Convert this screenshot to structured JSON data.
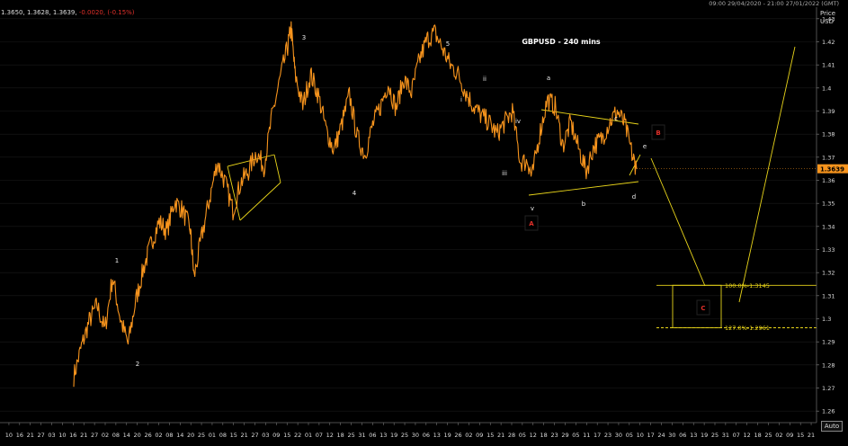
{
  "header": {
    "ohlc_values": "1.3650, 1.3628, 1.3639,",
    "change": "-0.0020, (-0.15%)",
    "date_range": "09:00 29/04/2020 - 21:00 27/01/2022 (GMT)",
    "price_label": "Price",
    "currency_label": "USD",
    "auto_button": "Auto"
  },
  "chart_data": {
    "type": "line",
    "title": "GBPUSD - 240 mins",
    "xlabel": "",
    "ylabel": "Price USD",
    "ylim": [
      1.255,
      1.435
    ],
    "y_ticks": [
      "1.43",
      "1.42",
      "1.41",
      "1.4",
      "1.39",
      "1.38",
      "1.37",
      "1.36",
      "1.35",
      "1.34",
      "1.33",
      "1.32",
      "1.31",
      "1.3",
      "1.29",
      "1.28",
      "1.27",
      "1.26"
    ],
    "y_tick_values": [
      1.43,
      1.42,
      1.41,
      1.4,
      1.39,
      1.38,
      1.37,
      1.36,
      1.35,
      1.34,
      1.33,
      1.32,
      1.31,
      1.3,
      1.29,
      1.28,
      1.27,
      1.26
    ],
    "x_tick_labels": [
      "10",
      "16",
      "21",
      "27",
      "03",
      "10",
      "16",
      "21",
      "27",
      "02",
      "08",
      "14",
      "20",
      "26",
      "02",
      "08",
      "14",
      "20",
      "25",
      "01",
      "08",
      "15",
      "21",
      "27",
      "03",
      "09",
      "15",
      "22",
      "01",
      "07",
      "12",
      "18",
      "25",
      "31",
      "06",
      "13",
      "19",
      "25",
      "30",
      "06",
      "13",
      "19",
      "26",
      "02",
      "09",
      "15",
      "21",
      "28",
      "05",
      "12",
      "18",
      "23",
      "29",
      "05",
      "11",
      "17",
      "23",
      "30",
      "05",
      "10",
      "17",
      "24",
      "30",
      "06",
      "13",
      "19",
      "25",
      "31",
      "07",
      "12",
      "18",
      "25",
      "02",
      "09",
      "15",
      "21"
    ],
    "current_price": "1.3639",
    "series": [
      {
        "color": "#f7941d",
        "points": [
          [
            0,
            1.275
          ],
          [
            2,
            1.288
          ],
          [
            4,
            1.299
          ],
          [
            6,
            1.306
          ],
          [
            8,
            1.295
          ],
          [
            10,
            1.318
          ],
          [
            12,
            1.3
          ],
          [
            14,
            1.289
          ],
          [
            16,
            1.308
          ],
          [
            18,
            1.322
          ],
          [
            20,
            1.333
          ],
          [
            22,
            1.342
          ],
          [
            24,
            1.338
          ],
          [
            26,
            1.351
          ],
          [
            28,
            1.347
          ],
          [
            30,
            1.339
          ],
          [
            31,
            1.318
          ],
          [
            33,
            1.336
          ],
          [
            35,
            1.352
          ],
          [
            37,
            1.368
          ],
          [
            39,
            1.359
          ],
          [
            41,
            1.347
          ],
          [
            43,
            1.359
          ],
          [
            45,
            1.364
          ],
          [
            47,
            1.372
          ],
          [
            49,
            1.366
          ],
          [
            51,
            1.387
          ],
          [
            53,
            1.403
          ],
          [
            55,
            1.417
          ],
          [
            56,
            1.426
          ],
          [
            57,
            1.406
          ],
          [
            59,
            1.392
          ],
          [
            61,
            1.406
          ],
          [
            63,
            1.397
          ],
          [
            65,
            1.382
          ],
          [
            67,
            1.373
          ],
          [
            69,
            1.384
          ],
          [
            71,
            1.397
          ],
          [
            73,
            1.379
          ],
          [
            75,
            1.371
          ],
          [
            77,
            1.384
          ],
          [
            79,
            1.392
          ],
          [
            81,
            1.402
          ],
          [
            83,
            1.391
          ],
          [
            85,
            1.404
          ],
          [
            87,
            1.398
          ],
          [
            89,
            1.412
          ],
          [
            91,
            1.421
          ],
          [
            93,
            1.424
          ],
          [
            95,
            1.417
          ],
          [
            97,
            1.41
          ],
          [
            99,
            1.406
          ],
          [
            101,
            1.398
          ],
          [
            103,
            1.392
          ],
          [
            105,
            1.388
          ],
          [
            107,
            1.385
          ],
          [
            109,
            1.38
          ],
          [
            111,
            1.385
          ],
          [
            113,
            1.39
          ],
          [
            115,
            1.368
          ],
          [
            117,
            1.368
          ],
          [
            118,
            1.361
          ],
          [
            120,
            1.38
          ],
          [
            122,
            1.395
          ],
          [
            124,
            1.392
          ],
          [
            126,
            1.375
          ],
          [
            128,
            1.385
          ],
          [
            130,
            1.374
          ],
          [
            132,
            1.364
          ],
          [
            134,
            1.375
          ],
          [
            136,
            1.378
          ],
          [
            138,
            1.385
          ],
          [
            140,
            1.39
          ],
          [
            142,
            1.384
          ],
          [
            144,
            1.37
          ],
          [
            145,
            1.365
          ]
        ]
      }
    ],
    "wave_labels": [
      {
        "text": "1",
        "color": "white"
      },
      {
        "text": "2",
        "color": "white"
      },
      {
        "text": "3",
        "color": "white"
      },
      {
        "text": "4",
        "color": "white"
      },
      {
        "text": "5",
        "color": "white"
      },
      {
        "text": "i",
        "color": "white"
      },
      {
        "text": "ii",
        "color": "white"
      },
      {
        "text": "iii",
        "color": "white"
      },
      {
        "text": "iv",
        "color": "white"
      },
      {
        "text": "v",
        "color": "white"
      },
      {
        "text": "a",
        "color": "white"
      },
      {
        "text": "b",
        "color": "white"
      },
      {
        "text": "c",
        "color": "white"
      },
      {
        "text": "d",
        "color": "white"
      },
      {
        "text": "e",
        "color": "white"
      },
      {
        "text": "A",
        "color": "red"
      },
      {
        "text": "B",
        "color": "red"
      },
      {
        "text": "C",
        "color": "red"
      }
    ],
    "fib_levels": [
      {
        "label": "100.0%-1.3145",
        "value": 1.3145
      },
      {
        "label": "127.0%-1.2961",
        "value": 1.2961
      }
    ]
  }
}
